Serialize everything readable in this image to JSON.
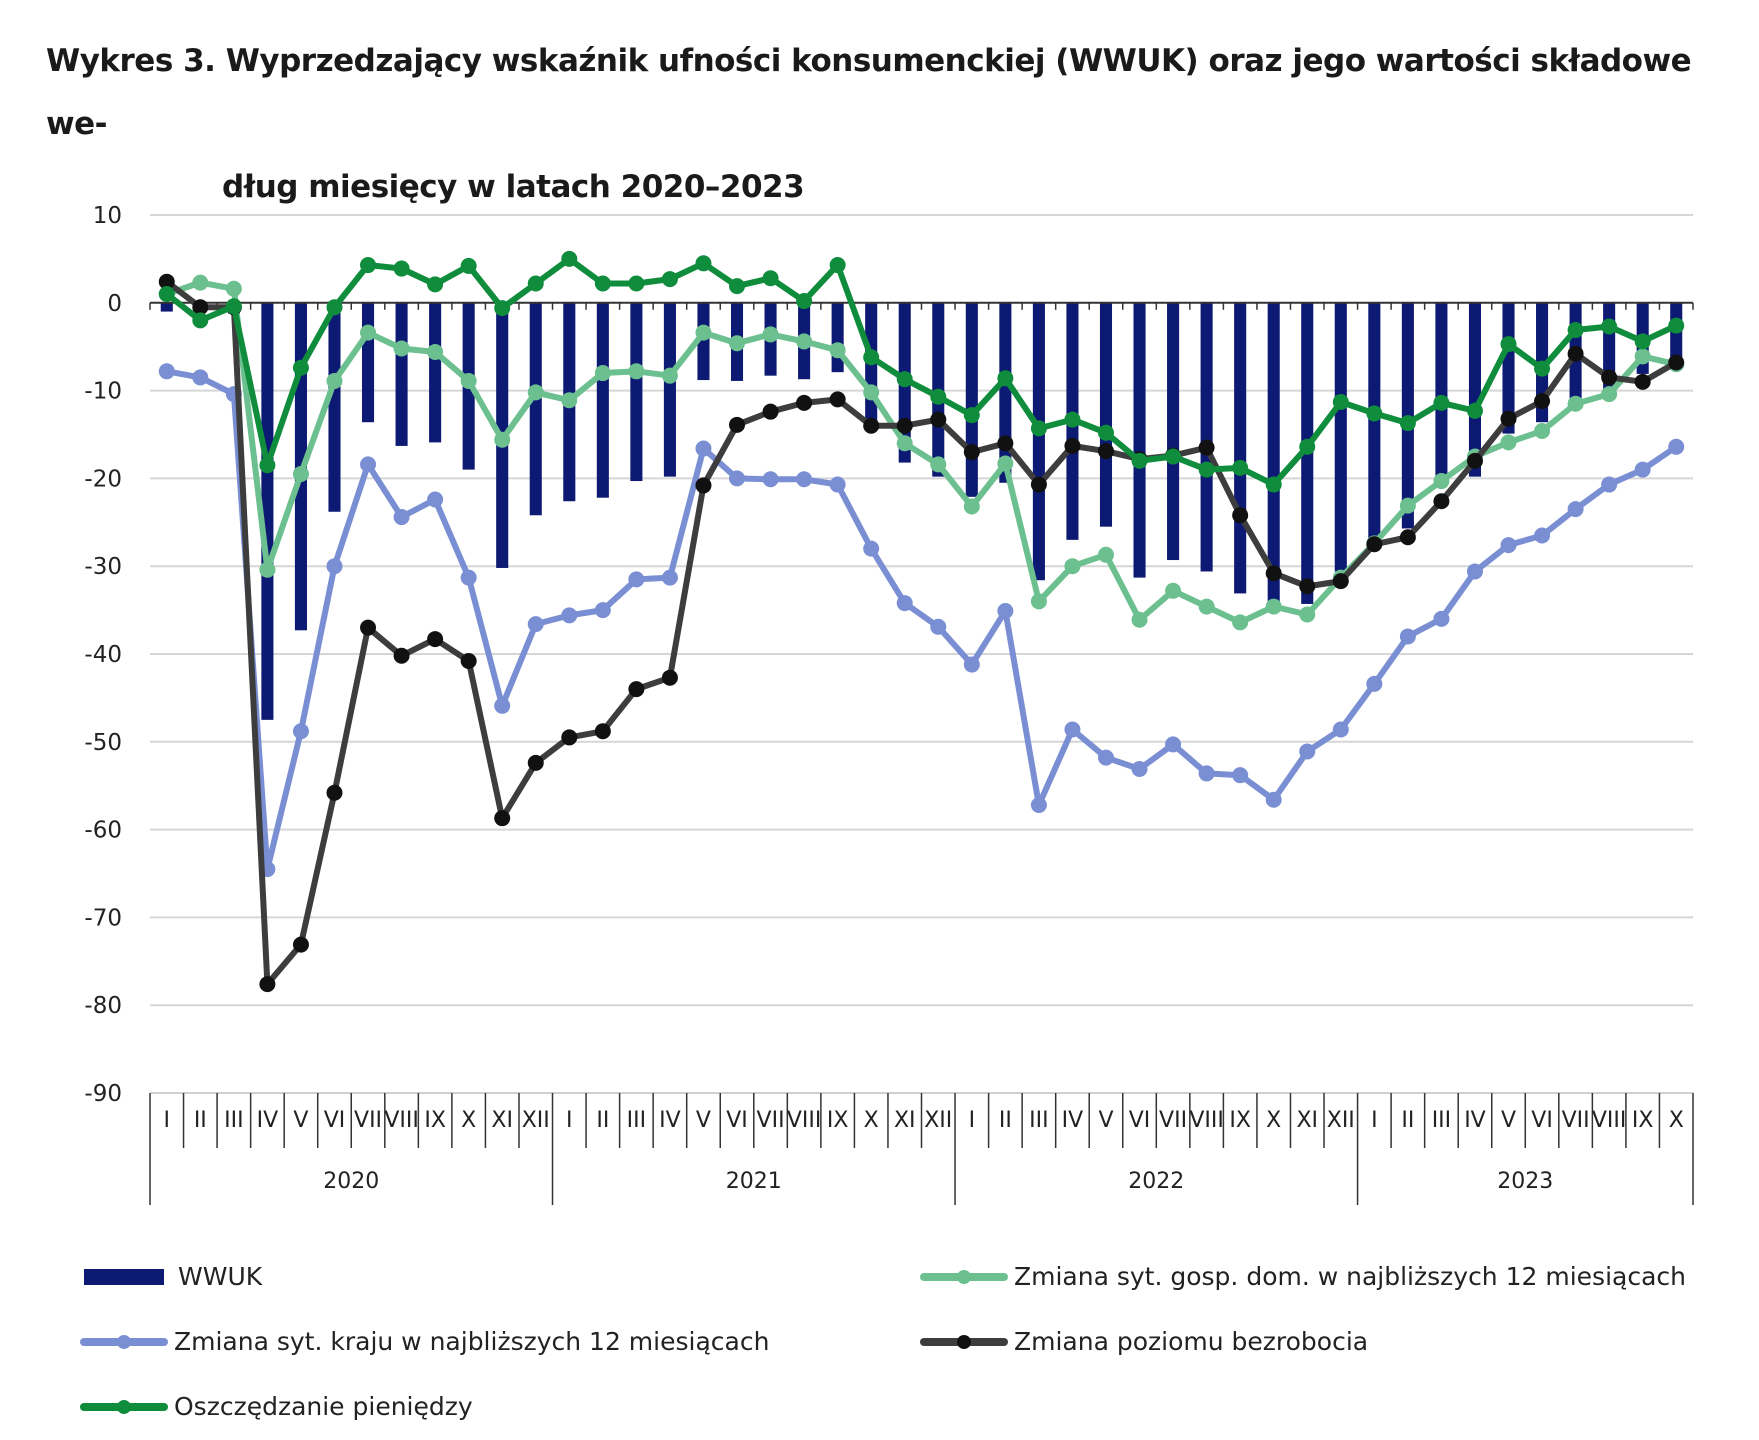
{
  "title": {
    "line1": "Wykres 3. Wyprzedzający wskaźnik ufności konsumenckiej (WWUK) oraz jego wartości składowe we-",
    "line2": "dług miesięcy w latach 2020–2023"
  },
  "colors": {
    "wwuk": "#0d1a73",
    "gosp_dom": "#6cc08f",
    "kraj": "#7a8fd3",
    "bezrobocie": "#3d3d3d",
    "oszczedzanie": "#0f8c3c",
    "grid": "#d6d6d6"
  },
  "chart_data": {
    "type": "bar+line",
    "ylim": [
      -90,
      10
    ],
    "yticks": [
      10,
      0,
      -10,
      -20,
      -30,
      -40,
      -50,
      -60,
      -70,
      -80,
      -90
    ],
    "month_labels": [
      "I",
      "II",
      "III",
      "IV",
      "V",
      "VI",
      "VII",
      "VIII",
      "IX",
      "X",
      "XI",
      "XII",
      "I",
      "II",
      "III",
      "IV",
      "V",
      "VI",
      "VII",
      "VIII",
      "IX",
      "X",
      "XI",
      "XII",
      "I",
      "II",
      "III",
      "IV",
      "V",
      "VI",
      "VII",
      "VIII",
      "IX",
      "X",
      "XI",
      "XII",
      "I",
      "II",
      "III",
      "IV",
      "V",
      "VI",
      "VII",
      "VIII",
      "IX",
      "X"
    ],
    "years": [
      {
        "label": "2020",
        "months": 12
      },
      {
        "label": "2021",
        "months": 12
      },
      {
        "label": "2022",
        "months": 12
      },
      {
        "label": "2023",
        "months": 10
      }
    ],
    "series": [
      {
        "key": "wwuk",
        "name": "WWUK",
        "kind": "bar",
        "values": [
          -1.0,
          -0.8,
          -1.2,
          -47.5,
          -37.3,
          -23.8,
          -13.6,
          -16.3,
          -15.9,
          -19.0,
          -30.2,
          -24.2,
          -22.6,
          -22.2,
          -20.3,
          -19.8,
          -8.8,
          -8.9,
          -8.3,
          -8.7,
          -7.9,
          -14.0,
          -18.2,
          -19.8,
          -22.1,
          -20.5,
          -31.6,
          -27.0,
          -25.5,
          -31.3,
          -29.3,
          -30.6,
          -33.1,
          -34.6,
          -34.3,
          -30.6,
          -27.8,
          -25.7,
          -20.7,
          -19.8,
          -14.9,
          -13.6,
          -11.4,
          -10.4,
          -8.1,
          -6.7
        ]
      },
      {
        "key": "gosp_dom",
        "name": "Zmiana syt. gosp. dom. w najbliższych 12 miesiącach",
        "kind": "line",
        "values": [
          1.0,
          2.3,
          1.6,
          -30.4,
          -19.5,
          -8.9,
          -3.4,
          -5.2,
          -5.6,
          -8.9,
          -15.6,
          -10.2,
          -11.1,
          -8.0,
          -7.8,
          -8.3,
          -3.4,
          -4.6,
          -3.6,
          -4.4,
          -5.4,
          -10.2,
          -16.0,
          -18.4,
          -23.2,
          -18.3,
          -34.0,
          -30.0,
          -28.7,
          -36.1,
          -32.8,
          -34.6,
          -36.4,
          -34.6,
          -35.5,
          -31.3,
          -27.4,
          -23.1,
          -20.3,
          -17.5,
          -15.9,
          -14.6,
          -11.5,
          -10.4,
          -6.1,
          -7.0
        ]
      },
      {
        "key": "kraj",
        "name": "Zmiana syt. kraju w najbliższych 12 miesiącach",
        "kind": "line",
        "values": [
          -7.8,
          -8.5,
          -10.4,
          -64.5,
          -48.8,
          -30.0,
          -18.4,
          -24.4,
          -22.4,
          -31.3,
          -45.9,
          -36.6,
          -35.6,
          -35.0,
          -31.5,
          -31.3,
          -16.6,
          -20.0,
          -20.1,
          -20.1,
          -20.7,
          -28.0,
          -34.2,
          -36.9,
          -41.2,
          -35.1,
          -57.2,
          -48.6,
          -51.8,
          -53.1,
          -50.3,
          -53.6,
          -53.8,
          -56.6,
          -51.1,
          -48.6,
          -43.4,
          -38.0,
          -36.0,
          -30.6,
          -27.6,
          -26.5,
          -23.5,
          -20.7,
          -19.0,
          -16.4
        ]
      },
      {
        "key": "bezrobocie",
        "name": "Zmiana poziomu bezrobocia",
        "kind": "line",
        "values": [
          2.4,
          -0.5,
          -0.5,
          -77.6,
          -73.1,
          -55.8,
          -37.0,
          -40.2,
          -38.3,
          -40.8,
          -58.7,
          -52.4,
          -49.5,
          -48.8,
          -44.0,
          -42.7,
          -20.8,
          -13.9,
          -12.4,
          -11.4,
          -11.0,
          -14.0,
          -14.0,
          -13.3,
          -17.0,
          -16.0,
          -20.7,
          -16.3,
          -16.9,
          -17.8,
          -17.4,
          -16.5,
          -24.2,
          -30.8,
          -32.3,
          -31.7,
          -27.5,
          -26.7,
          -22.6,
          -18.0,
          -13.2,
          -11.2,
          -5.8,
          -8.5,
          -9.0,
          -6.8
        ]
      },
      {
        "key": "oszczedzanie",
        "name": "Oszczędzanie pieniędzy",
        "kind": "line",
        "values": [
          1.0,
          -2.0,
          -0.4,
          -18.5,
          -7.4,
          -0.5,
          4.3,
          3.9,
          2.1,
          4.2,
          -0.6,
          2.2,
          5.0,
          2.2,
          2.2,
          2.7,
          4.5,
          1.9,
          2.8,
          0.2,
          4.3,
          -6.2,
          -8.7,
          -10.7,
          -12.8,
          -8.6,
          -14.3,
          -13.3,
          -14.8,
          -18.0,
          -17.5,
          -19.0,
          -18.8,
          -20.7,
          -16.4,
          -11.3,
          -12.6,
          -13.7,
          -11.4,
          -12.3,
          -4.7,
          -7.5,
          -3.1,
          -2.7,
          -4.4,
          -2.6
        ]
      }
    ]
  }
}
